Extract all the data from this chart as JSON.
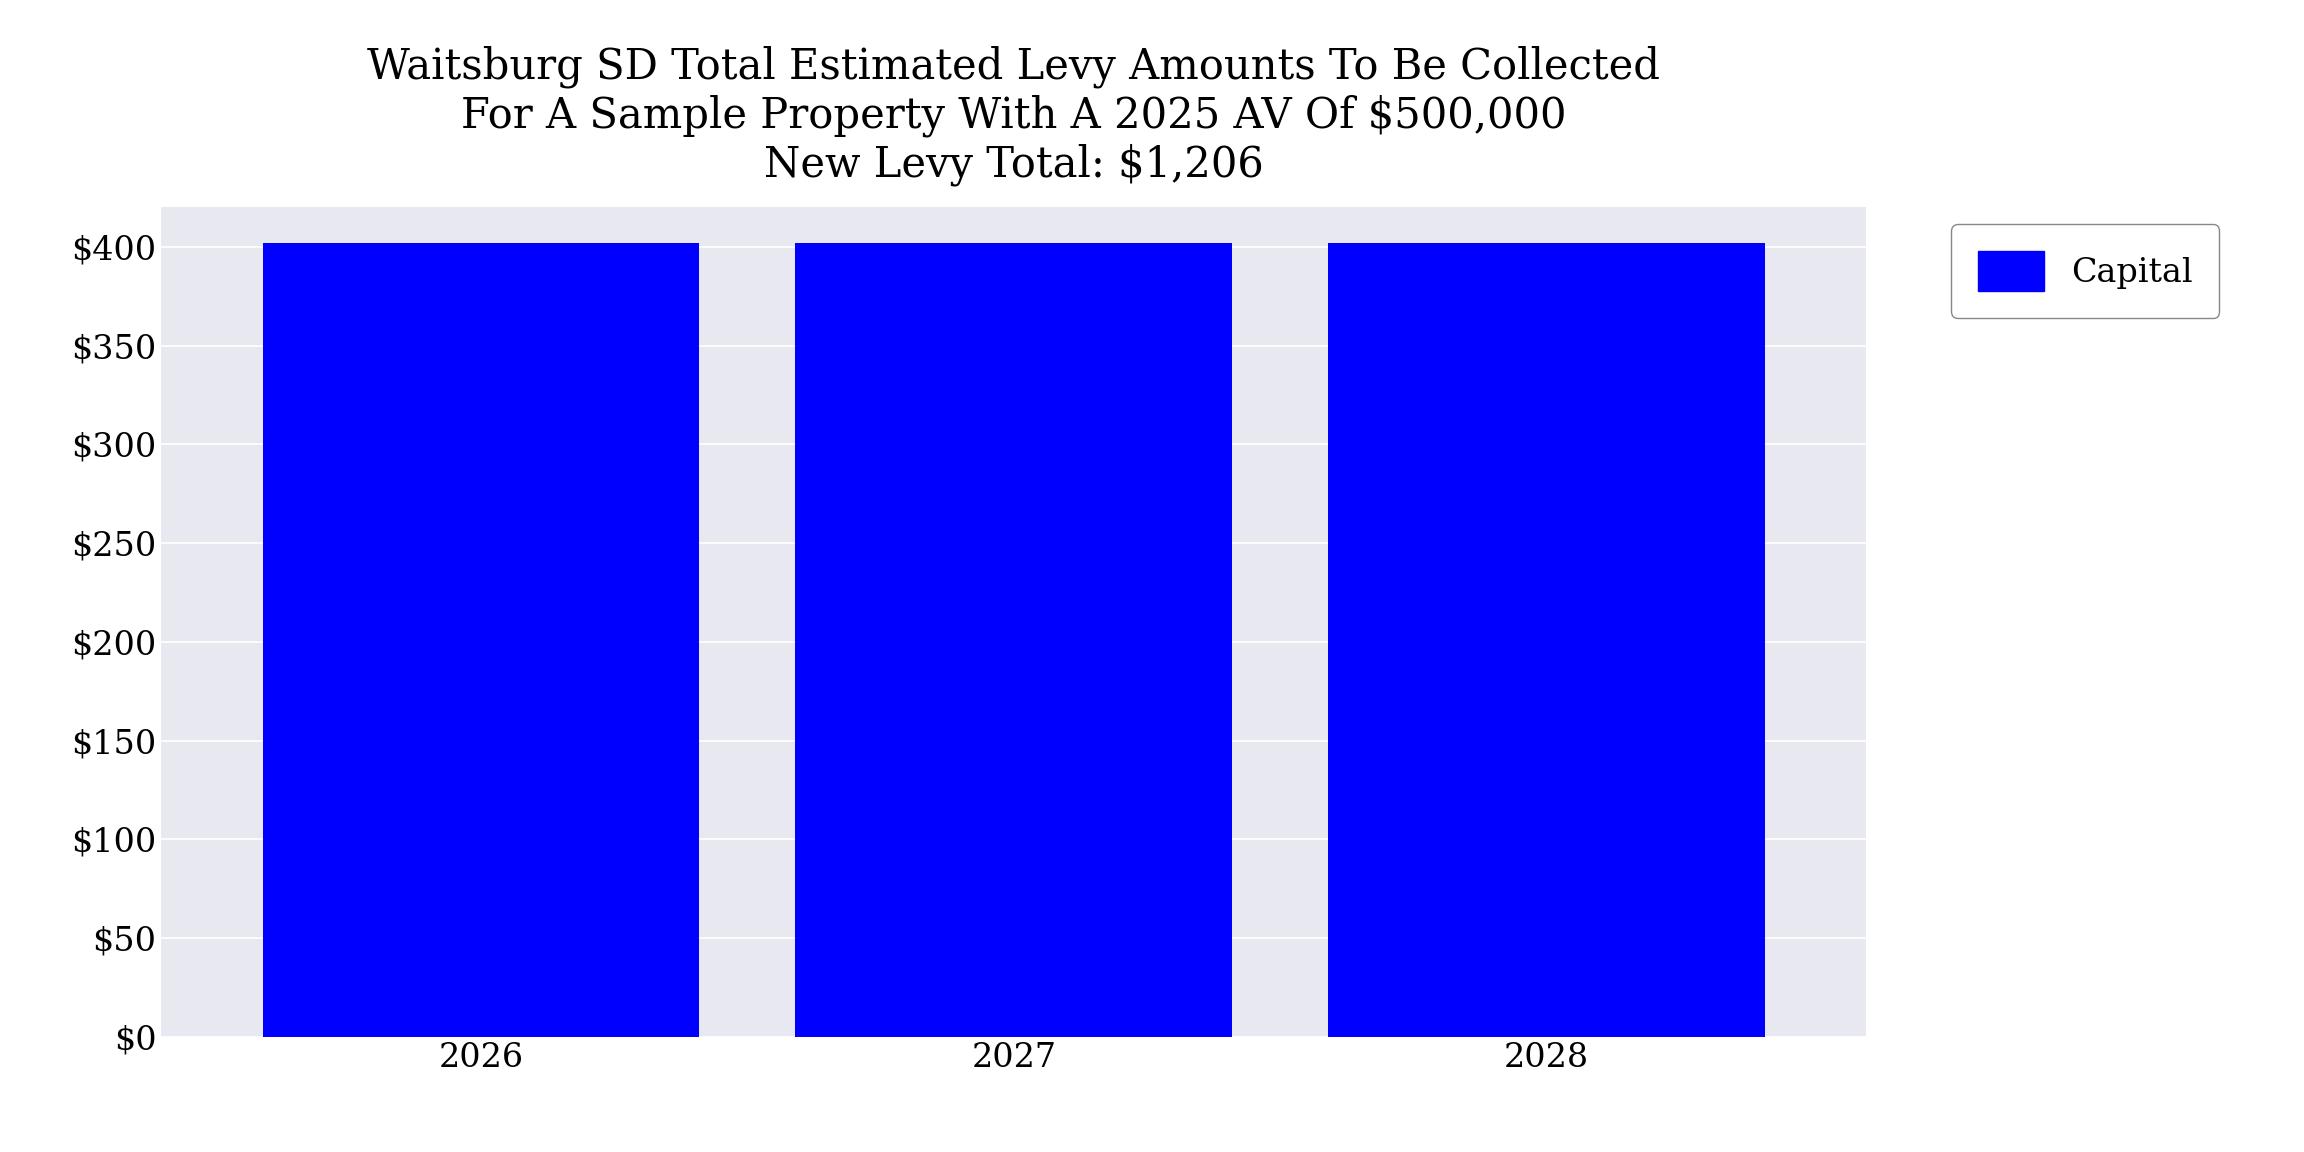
{
  "title_line1": "Waitsburg SD Total Estimated Levy Amounts To Be Collected",
  "title_line2": "For A Sample Property With A 2025 AV Of $500,000",
  "title_line3": "New Levy Total: $1,206",
  "years": [
    2026,
    2027,
    2028
  ],
  "values": [
    402,
    402,
    402
  ],
  "bar_color": "#0000FF",
  "plot_bg_color": "#E8E8F0",
  "fig_bg_color": "#FFFFFF",
  "ylim": [
    0,
    420
  ],
  "yticks": [
    0,
    50,
    100,
    150,
    200,
    250,
    300,
    350,
    400
  ],
  "ytick_labels": [
    "$0",
    "$50",
    "$100",
    "$150",
    "$200",
    "$250",
    "$300",
    "$350",
    "$400"
  ],
  "legend_label": "Capital",
  "title_fontsize": 30,
  "tick_fontsize": 24,
  "legend_fontsize": 24,
  "bar_width": 0.82
}
